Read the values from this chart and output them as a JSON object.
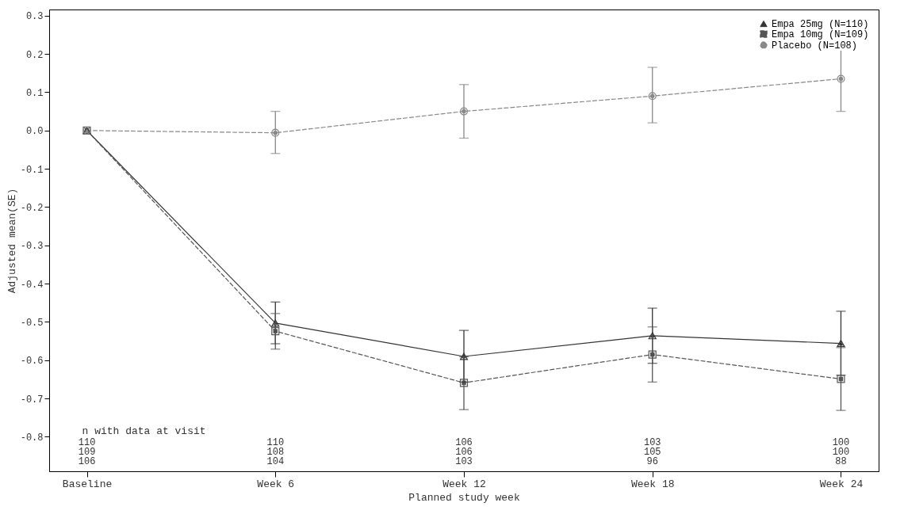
{
  "chart_data": {
    "type": "line",
    "xlabel": "Planned study week",
    "ylabel": "Adjusted mean(SE)",
    "categories": [
      "Baseline",
      "Week 6",
      "Week 12",
      "Week 18",
      "Week 24"
    ],
    "ylim": [
      -0.89,
      0.316
    ],
    "yticks": [
      0.3,
      0.2,
      0.1,
      {
        "value": 0,
        "label": "0.0"
      },
      -0.1,
      -0.2,
      -0.3,
      -0.4,
      -0.5,
      -0.6,
      -0.7,
      -0.8
    ],
    "legend": "top right",
    "series": [
      {
        "name": "Empa 25mg (N=110)",
        "color": "#333333",
        "line_style": "solid",
        "marker": "triangle",
        "values": [
          0,
          -0.503,
          -0.59,
          -0.536,
          -0.556
        ],
        "errors": [
          null,
          [
            -0.557,
            -0.448
          ],
          [
            -0.657,
            -0.522
          ],
          [
            -0.608,
            -0.464
          ],
          [
            -0.639,
            -0.472
          ]
        ]
      },
      {
        "name": "Empa 10mg (N=109)",
        "color": "#555555",
        "line_style": "dashed",
        "marker": "square",
        "values": [
          0,
          -0.524,
          -0.659,
          -0.585,
          -0.649
        ],
        "errors": [
          null,
          [
            -0.571,
            -0.478
          ],
          [
            -0.729,
            -0.591
          ],
          [
            -0.657,
            -0.513
          ],
          [
            -0.731,
            -0.567
          ]
        ]
      },
      {
        "name": "Placebo (N=108)",
        "color": "#888888",
        "line_style": "dashed",
        "marker": "circle",
        "values": [
          0,
          -0.006,
          0.05,
          0.09,
          0.135
        ],
        "errors": [
          null,
          [
            -0.06,
            0.05
          ],
          [
            -0.02,
            0.12
          ],
          [
            0.02,
            0.165
          ],
          [
            0.05,
            0.22
          ]
        ]
      }
    ],
    "annotations": [
      "n with data at visit",
      "110\n109\n106",
      "110\n108\n104",
      "106\n106\n103",
      "103\n105\n96",
      "100\n100\n88"
    ]
  }
}
